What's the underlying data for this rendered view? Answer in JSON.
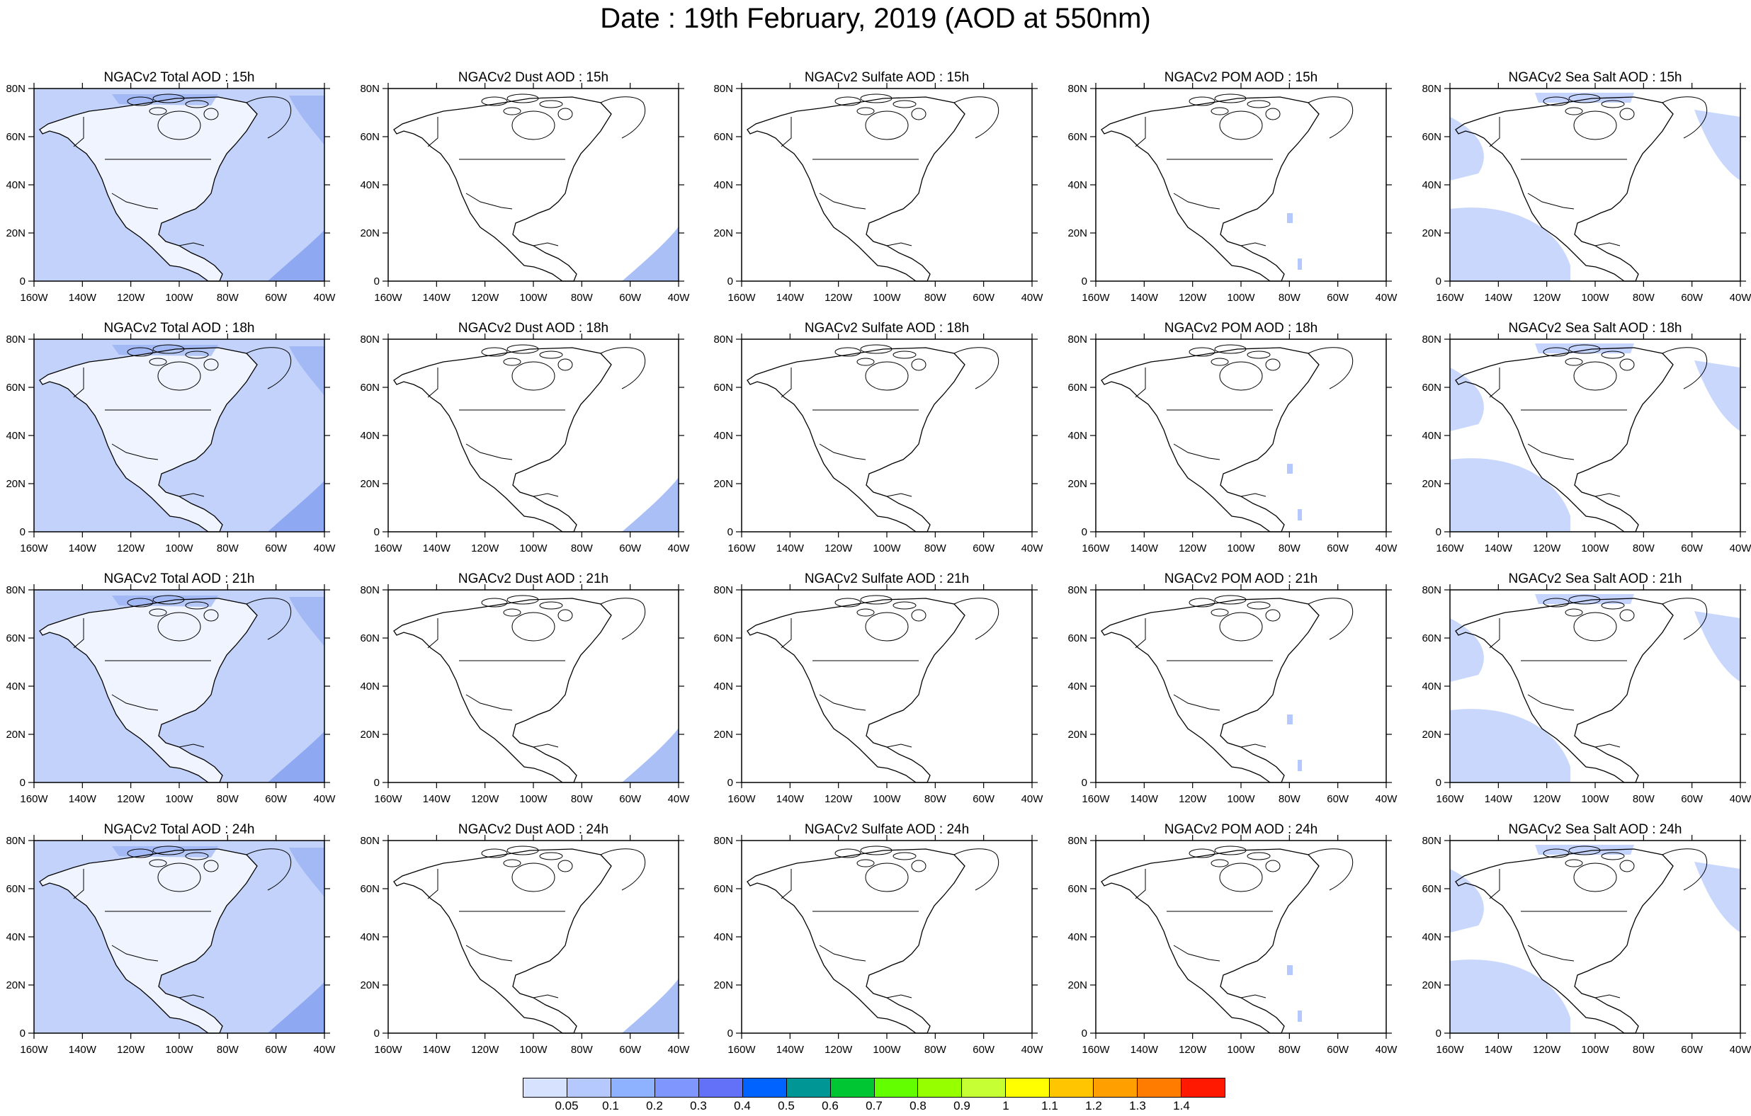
{
  "title": "Date : 19th February, 2019 (AOD at 550nm)",
  "lat_labels": [
    "0",
    "20N",
    "40N",
    "60N",
    "80N"
  ],
  "lon_labels": [
    "160W",
    "140W",
    "120W",
    "100W",
    "80W",
    "60W",
    "40W"
  ],
  "panels": [
    [
      "NGACv2 Total AOD : 15h",
      "NGACv2 Dust AOD : 15h",
      "NGACv2 Sulfate AOD : 15h",
      "NGACv2 POM AOD : 15h",
      "NGACv2 Sea Salt AOD : 15h"
    ],
    [
      "NGACv2 Total AOD : 18h",
      "NGACv2 Dust AOD : 18h",
      "NGACv2 Sulfate AOD : 18h",
      "NGACv2 POM AOD : 18h",
      "NGACv2 Sea Salt AOD : 18h"
    ],
    [
      "NGACv2 Total AOD : 21h",
      "NGACv2 Dust AOD : 21h",
      "NGACv2 Sulfate AOD : 21h",
      "NGACv2 POM AOD : 21h",
      "NGACv2 Sea Salt AOD : 21h"
    ],
    [
      "NGACv2 Total AOD : 24h",
      "NGACv2 Dust AOD : 24h",
      "NGACv2 Sulfate AOD : 24h",
      "NGACv2 POM AOD : 24h",
      "NGACv2 Sea Salt  AOD : 24h"
    ]
  ],
  "colorbar": {
    "labels": [
      "0.05",
      "0.1",
      "0.2",
      "0.3",
      "0.4",
      "0.5",
      "0.6",
      "0.7",
      "0.8",
      "0.9",
      "1",
      "1.1",
      "1.2",
      "1.3",
      "1.4"
    ],
    "colors": [
      "#ffffff",
      "#d6e2ff",
      "#b5c9ff",
      "#8eb2ff",
      "#7f96ff",
      "#6370f8",
      "#0063ff",
      "#009696",
      "#00c633",
      "#63ff00",
      "#96ff00",
      "#c6ff33",
      "#ffff00",
      "#ffc600",
      "#ffa000",
      "#ff7c00",
      "#ff1900"
    ]
  },
  "shading": {
    "total": "#c2d2fa",
    "total_strong": "#8ea8f2",
    "dust": "#aabff6",
    "seasalt": "#c8d7fb",
    "pom": "#b5c9ff"
  }
}
